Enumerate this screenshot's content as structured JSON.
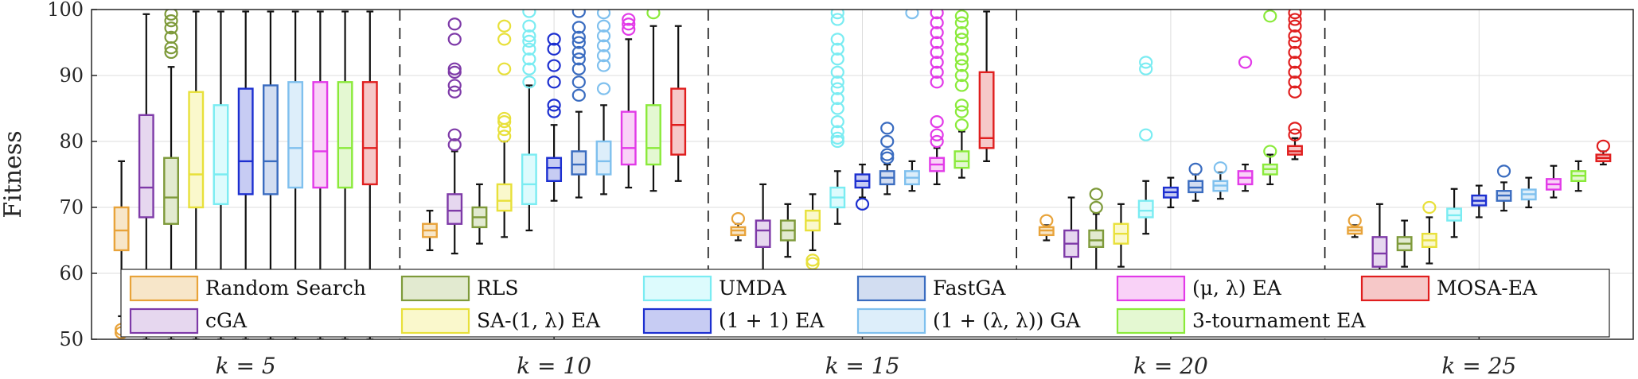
{
  "chart_data": {
    "type": "boxplot",
    "ylabel": "Fitness",
    "ylim": [
      50,
      100
    ],
    "yticks": [
      50,
      60,
      70,
      80,
      90,
      100
    ],
    "grid": true,
    "legend_position": "bottom (inside axes, 2 rows)",
    "groups": [
      "k = 5",
      "k = 10",
      "k = 15",
      "k = 20",
      "k = 25"
    ],
    "group_values": [
      5,
      10,
      15,
      20,
      25
    ],
    "group_prefix": "k = ",
    "series": [
      {
        "name": "Random Search",
        "color": "#E8A33A",
        "fill": "#F7E6C9"
      },
      {
        "name": "cGA",
        "color": "#7E3AA8",
        "fill": "#E6D7EF"
      },
      {
        "name": "RLS",
        "color": "#7E9A3A",
        "fill": "#E2EAD0"
      },
      {
        "name": "SA-(1, λ) EA",
        "color": "#E8E03A",
        "fill": "#FAF8CC"
      },
      {
        "name": "UMDA",
        "color": "#7AECF2",
        "fill": "#DDFBFD"
      },
      {
        "name": "(1 + 1) EA",
        "color": "#1C2FD0",
        "fill": "#C7CCF3"
      },
      {
        "name": "FastGA",
        "color": "#3A6CC0",
        "fill": "#D2DDF1"
      },
      {
        "name": "(1 + (λ, λ)) GA",
        "color": "#7FC0EE",
        "fill": "#DDEEFA"
      },
      {
        "name": "(μ, λ) EA",
        "color": "#E23AE8",
        "fill": "#F9D2F7"
      },
      {
        "name": "3-tournament EA",
        "color": "#8AEA3A",
        "fill": "#E4F8D2"
      },
      {
        "name": "MOSA-EA",
        "color": "#E01E1E",
        "fill": "#F6C8C8"
      }
    ],
    "boxes": [
      [
        {
          "q1": 63.5,
          "median": 66.5,
          "q3": 70,
          "whisker_low": 53.5,
          "whisker_high": 77,
          "outliers": [
            51,
            51.5
          ]
        },
        {
          "q1": 68.5,
          "median": 73,
          "q3": 84,
          "whisker_low": 50,
          "whisker_high": 99.3,
          "outliers": []
        },
        {
          "q1": 67.5,
          "median": 71.5,
          "q3": 77.5,
          "whisker_low": 50,
          "whisker_high": 91.3,
          "outliers": [
            93.5,
            94.2,
            95.8,
            97.2,
            98.3,
            99.3
          ]
        },
        {
          "q1": 70,
          "median": 75,
          "q3": 87.5,
          "whisker_low": 50,
          "whisker_high": 99.7,
          "outliers": []
        },
        {
          "q1": 70.5,
          "median": 75,
          "q3": 85.5,
          "whisker_low": 50,
          "whisker_high": 99.7,
          "outliers": []
        },
        {
          "q1": 72,
          "median": 77,
          "q3": 88,
          "whisker_low": 50,
          "whisker_high": 99.7,
          "outliers": []
        },
        {
          "q1": 72,
          "median": 77,
          "q3": 88.5,
          "whisker_low": 50,
          "whisker_high": 99.7,
          "outliers": []
        },
        {
          "q1": 73,
          "median": 79,
          "q3": 89,
          "whisker_low": 50,
          "whisker_high": 99.7,
          "outliers": []
        },
        {
          "q1": 73,
          "median": 78.5,
          "q3": 89,
          "whisker_low": 50,
          "whisker_high": 99.7,
          "outliers": []
        },
        {
          "q1": 73,
          "median": 79,
          "q3": 89,
          "whisker_low": 50,
          "whisker_high": 99.7,
          "outliers": []
        },
        {
          "q1": 73.5,
          "median": 79,
          "q3": 89,
          "whisker_low": 50,
          "whisker_high": 99.7,
          "outliers": []
        }
      ],
      [
        {
          "q1": 65.5,
          "median": 66.5,
          "q3": 67.5,
          "whisker_low": 63.5,
          "whisker_high": 69.5,
          "outliers": []
        },
        {
          "q1": 67.5,
          "median": 69.5,
          "q3": 72,
          "whisker_low": 63,
          "whisker_high": 78.5,
          "outliers": [
            79.5,
            81,
            87.5,
            88.5,
            90.5,
            91,
            95.5,
            97.8
          ]
        },
        {
          "q1": 67,
          "median": 68.5,
          "q3": 70,
          "whisker_low": 64.5,
          "whisker_high": 73.5,
          "outliers": []
        },
        {
          "q1": 69.5,
          "median": 71,
          "q3": 73.5,
          "whisker_low": 65.5,
          "whisker_high": 80,
          "outliers": [
            80.8,
            81.8,
            83,
            83.5,
            91,
            95.5,
            97.5
          ]
        },
        {
          "q1": 70.5,
          "median": 73.5,
          "q3": 78,
          "whisker_low": 66.5,
          "whisker_high": 88.5,
          "outliers": [
            89,
            91,
            92.5,
            94,
            95.2,
            96,
            97.5,
            99.7
          ]
        },
        {
          "q1": 74,
          "median": 76,
          "q3": 77.5,
          "whisker_low": 71,
          "whisker_high": 82.5,
          "outliers": [
            84.5,
            85.5,
            89,
            91.5,
            94,
            95.5
          ]
        },
        {
          "q1": 75,
          "median": 76.5,
          "q3": 78.5,
          "whisker_low": 71.5,
          "whisker_high": 84.5,
          "outliers": [
            87,
            89,
            91,
            92.5,
            93.5,
            95,
            95.8,
            97.3,
            99.7
          ]
        },
        {
          "q1": 75,
          "median": 77,
          "q3": 80,
          "whisker_low": 72,
          "whisker_high": 85.5,
          "outliers": [
            88,
            91.5,
            93,
            94.5,
            96,
            97.5,
            99.5
          ]
        },
        {
          "q1": 76.5,
          "median": 79,
          "q3": 84.5,
          "whisker_low": 73,
          "whisker_high": 95.5,
          "outliers": [
            97,
            97.8,
            98.5
          ]
        },
        {
          "q1": 76.5,
          "median": 79,
          "q3": 85.5,
          "whisker_low": 72.5,
          "whisker_high": 97.5,
          "outliers": [
            99.5
          ]
        },
        {
          "q1": 78,
          "median": 82.5,
          "q3": 88,
          "whisker_low": 74,
          "whisker_high": 97.5,
          "outliers": []
        }
      ],
      [
        {
          "q1": 65.8,
          "median": 66.5,
          "q3": 67,
          "whisker_low": 65,
          "whisker_high": 67.5,
          "outliers": [
            68.3
          ]
        },
        {
          "q1": 64,
          "median": 66.5,
          "q3": 68,
          "whisker_low": 60,
          "whisker_high": 73.5,
          "outliers": []
        },
        {
          "q1": 65,
          "median": 66.5,
          "q3": 68,
          "whisker_low": 62.5,
          "whisker_high": 70.5,
          "outliers": []
        },
        {
          "q1": 66.5,
          "median": 68,
          "q3": 69.5,
          "whisker_low": 63.5,
          "whisker_high": 72,
          "outliers": [
            61.5,
            62
          ]
        },
        {
          "q1": 70,
          "median": 71.5,
          "q3": 73,
          "whisker_low": 67.5,
          "whisker_high": 75.5,
          "outliers": [
            80,
            80.5,
            81.5,
            83,
            85,
            86.5,
            88,
            89,
            90.5,
            92.5,
            94,
            95.5,
            98.5,
            99.5
          ]
        },
        {
          "q1": 73,
          "median": 74,
          "q3": 75,
          "whisker_low": 71.5,
          "whisker_high": 76.5,
          "outliers": [
            70.5
          ]
        },
        {
          "q1": 73.5,
          "median": 74.5,
          "q3": 75.5,
          "whisker_low": 72,
          "whisker_high": 76.5,
          "outliers": [
            77.5,
            78,
            80,
            82
          ]
        },
        {
          "q1": 73.5,
          "median": 74.5,
          "q3": 75.5,
          "whisker_low": 72.5,
          "whisker_high": 77,
          "outliers": [
            99.5
          ]
        },
        {
          "q1": 75.5,
          "median": 76.5,
          "q3": 77.5,
          "whisker_low": 73.5,
          "whisker_high": 79,
          "outliers": [
            80,
            81,
            83,
            89,
            90.5,
            92,
            93.5,
            95,
            96.5,
            98,
            99.5
          ]
        },
        {
          "q1": 76,
          "median": 77,
          "q3": 78.5,
          "whisker_low": 74.5,
          "whisker_high": 81.5,
          "outliers": [
            82.5,
            84.5,
            85.5,
            88.5,
            90,
            91.5,
            92.5,
            94,
            95.5,
            96.5,
            98,
            99
          ]
        },
        {
          "q1": 79,
          "median": 80.5,
          "q3": 90.5,
          "whisker_low": 77,
          "whisker_high": 99.7,
          "outliers": []
        }
      ],
      [
        {
          "q1": 65.8,
          "median": 66.5,
          "q3": 67,
          "whisker_low": 65,
          "whisker_high": 67.3,
          "outliers": [
            68
          ]
        },
        {
          "q1": 62.5,
          "median": 64.5,
          "q3": 66.5,
          "whisker_low": 58.5,
          "whisker_high": 71.5,
          "outliers": []
        },
        {
          "q1": 64,
          "median": 65,
          "q3": 66.5,
          "whisker_low": 60.5,
          "whisker_high": 69,
          "outliers": [
            70,
            72
          ]
        },
        {
          "q1": 64.5,
          "median": 66,
          "q3": 67.5,
          "whisker_low": 61,
          "whisker_high": 70.5,
          "outliers": []
        },
        {
          "q1": 68.5,
          "median": 69.5,
          "q3": 71,
          "whisker_low": 66,
          "whisker_high": 74,
          "outliers": [
            81,
            91,
            92
          ]
        },
        {
          "q1": 71.5,
          "median": 72.3,
          "q3": 73,
          "whisker_low": 70,
          "whisker_high": 74.5,
          "outliers": []
        },
        {
          "q1": 72.3,
          "median": 73,
          "q3": 74,
          "whisker_low": 71,
          "whisker_high": 75,
          "outliers": [
            75.8
          ]
        },
        {
          "q1": 72.5,
          "median": 73.3,
          "q3": 74,
          "whisker_low": 71.3,
          "whisker_high": 75.3,
          "outliers": [
            76
          ]
        },
        {
          "q1": 73.5,
          "median": 74.5,
          "q3": 75.5,
          "whisker_low": 72.5,
          "whisker_high": 76.5,
          "outliers": [
            92
          ]
        },
        {
          "q1": 75,
          "median": 75.8,
          "q3": 76.5,
          "whisker_low": 73.5,
          "whisker_high": 78,
          "outliers": [
            78.5,
            99
          ]
        },
        {
          "q1": 78,
          "median": 78.5,
          "q3": 79.3,
          "whisker_low": 77.3,
          "whisker_high": 80.5,
          "outliers": [
            81,
            82,
            87.5,
            89,
            90.5,
            92,
            93.5,
            95,
            96,
            97.5,
            98.5,
            99.5
          ]
        }
      ],
      [
        {
          "q1": 66,
          "median": 66.5,
          "q3": 67,
          "whisker_low": 65.5,
          "whisker_high": 67.3,
          "outliers": [
            68
          ]
        },
        {
          "q1": 61,
          "median": 63,
          "q3": 65.5,
          "whisker_low": 58,
          "whisker_high": 70.5,
          "outliers": []
        },
        {
          "q1": 63.5,
          "median": 64.5,
          "q3": 65.5,
          "whisker_low": 61,
          "whisker_high": 68,
          "outliers": []
        },
        {
          "q1": 64,
          "median": 65,
          "q3": 66,
          "whisker_low": 61.5,
          "whisker_high": 68.5,
          "outliers": [
            70
          ]
        },
        {
          "q1": 68,
          "median": 68.8,
          "q3": 69.8,
          "whisker_low": 65.5,
          "whisker_high": 72.8,
          "outliers": []
        },
        {
          "q1": 70.3,
          "median": 71,
          "q3": 71.8,
          "whisker_low": 68.5,
          "whisker_high": 73.3,
          "outliers": []
        },
        {
          "q1": 71,
          "median": 71.8,
          "q3": 72.5,
          "whisker_low": 69.5,
          "whisker_high": 73.8,
          "outliers": [
            75.5
          ]
        },
        {
          "q1": 71.2,
          "median": 72,
          "q3": 72.7,
          "whisker_low": 70,
          "whisker_high": 74.5,
          "outliers": []
        },
        {
          "q1": 72.7,
          "median": 73.5,
          "q3": 74.3,
          "whisker_low": 71.5,
          "whisker_high": 76.3,
          "outliers": []
        },
        {
          "q1": 74,
          "median": 74.8,
          "q3": 75.5,
          "whisker_low": 72.5,
          "whisker_high": 77,
          "outliers": []
        },
        {
          "q1": 77,
          "median": 77.5,
          "q3": 78,
          "whisker_low": 76.5,
          "whisker_high": 78.5,
          "outliers": [
            79.3
          ]
        }
      ]
    ]
  }
}
